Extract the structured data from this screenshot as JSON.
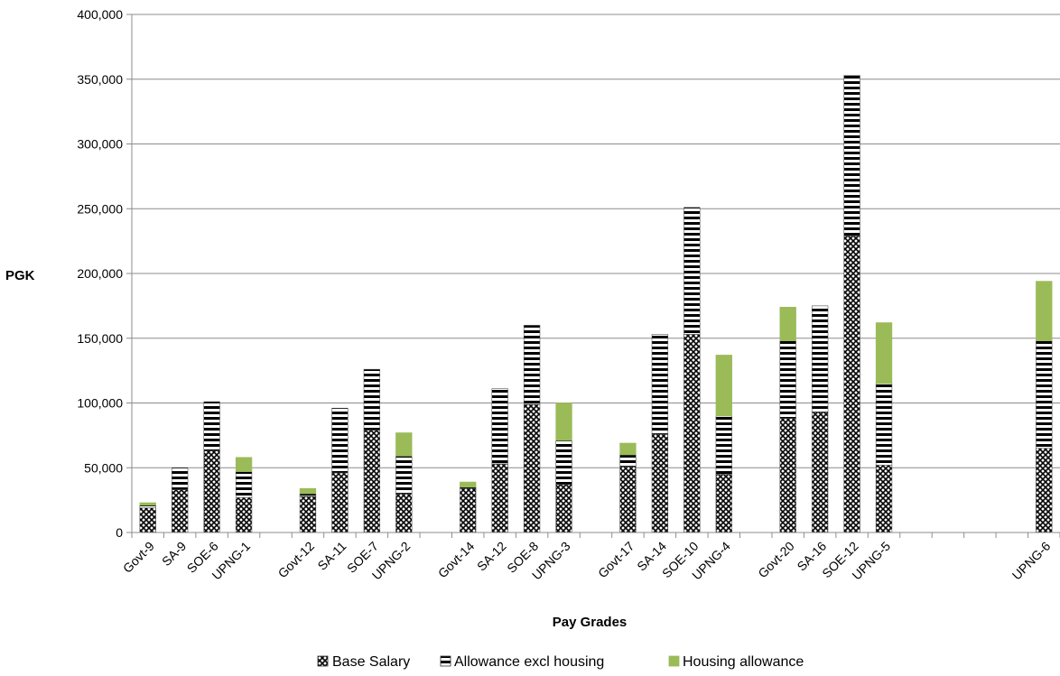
{
  "chart_data": {
    "type": "bar",
    "stacked": true,
    "title": "",
    "xlabel": "Pay Grades",
    "ylabel": "PGK",
    "ylim": [
      0,
      400000
    ],
    "ytick_step": 50000,
    "ytick_labels": [
      "0",
      "50,000",
      "100,000",
      "150,000",
      "200,000",
      "250,000",
      "300,000",
      "350,000",
      "400,000"
    ],
    "grid": true,
    "legend_position": "bottom",
    "categories": [
      "Govt-9",
      "SA-9",
      "SOE-6",
      "UPNG-1",
      "",
      "Govt-12",
      "SA-11",
      "SOE-7",
      "UPNG-2",
      "",
      "Govt-14",
      "SA-12",
      "SOE-8",
      "UPNG-3",
      "",
      "Govt-17",
      "SA-14",
      "SOE-10",
      "UPNG-4",
      "",
      "Govt-20",
      "SA-16",
      "SOE-12",
      "UPNG-5",
      "",
      "",
      "",
      "",
      "UPNG-6"
    ],
    "series": [
      {
        "name": "Base Salary",
        "pattern": "crosshatch",
        "color": "#000000",
        "values": [
          19000,
          33000,
          63000,
          27000,
          0,
          28000,
          46000,
          79000,
          30000,
          0,
          34000,
          53000,
          99000,
          37000,
          0,
          51000,
          76000,
          153000,
          45000,
          0,
          88000,
          93000,
          229000,
          52000,
          0,
          0,
          0,
          0,
          65000
        ]
      },
      {
        "name": "Allowance excl housing",
        "pattern": "horizontal-stripes",
        "color": "#000000",
        "values": [
          2000,
          17000,
          38000,
          20000,
          0,
          2000,
          50000,
          47000,
          29000,
          0,
          1000,
          58000,
          61000,
          34000,
          0,
          9000,
          77000,
          98000,
          45000,
          0,
          60000,
          82000,
          124000,
          63000,
          0,
          0,
          0,
          0,
          83000
        ]
      },
      {
        "name": "Housing allowance",
        "pattern": "solid",
        "color": "#9BBB59",
        "values": [
          2000,
          0,
          0,
          11000,
          0,
          4000,
          0,
          0,
          18000,
          0,
          4000,
          0,
          0,
          29000,
          0,
          9000,
          0,
          0,
          47000,
          0,
          26000,
          0,
          0,
          47000,
          0,
          0,
          0,
          0,
          46000
        ]
      }
    ]
  }
}
